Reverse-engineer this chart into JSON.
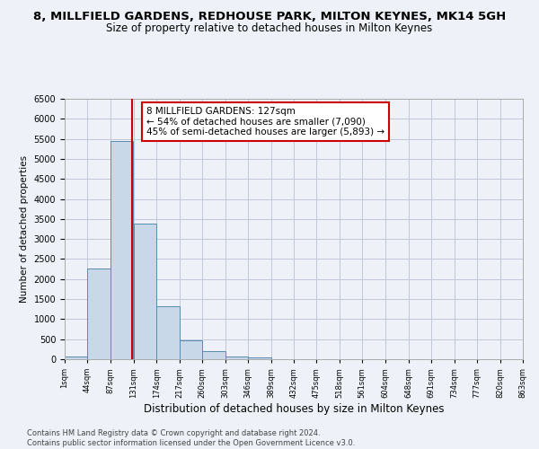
{
  "title": "8, MILLFIELD GARDENS, REDHOUSE PARK, MILTON KEYNES, MK14 5GH",
  "subtitle": "Size of property relative to detached houses in Milton Keynes",
  "xlabel": "Distribution of detached houses by size in Milton Keynes",
  "ylabel": "Number of detached properties",
  "bar_left_edges": [
    1,
    44,
    87,
    131,
    174,
    217,
    260,
    303,
    346,
    389,
    432,
    475,
    518,
    561,
    604,
    648,
    691,
    734,
    777,
    820
  ],
  "bar_heights": [
    75,
    2275,
    5450,
    3375,
    1325,
    475,
    200,
    75,
    50,
    0,
    0,
    0,
    0,
    0,
    0,
    0,
    0,
    0,
    0,
    0
  ],
  "bin_width": 43,
  "bar_color": "#c8d8e8",
  "bar_edge_color": "#5a8ab0",
  "vline_x": 127,
  "vline_color": "#cc0000",
  "annotation_text": "8 MILLFIELD GARDENS: 127sqm\n← 54% of detached houses are smaller (7,090)\n45% of semi-detached houses are larger (5,893) →",
  "annotation_box_color": "#ffffff",
  "annotation_box_edge_color": "#cc0000",
  "xlim": [
    1,
    863
  ],
  "ylim": [
    0,
    6500
  ],
  "yticks": [
    0,
    500,
    1000,
    1500,
    2000,
    2500,
    3000,
    3500,
    4000,
    4500,
    5000,
    5500,
    6000,
    6500
  ],
  "xtick_labels": [
    "1sqm",
    "44sqm",
    "87sqm",
    "131sqm",
    "174sqm",
    "217sqm",
    "260sqm",
    "303sqm",
    "346sqm",
    "389sqm",
    "432sqm",
    "475sqm",
    "518sqm",
    "561sqm",
    "604sqm",
    "648sqm",
    "691sqm",
    "734sqm",
    "777sqm",
    "820sqm",
    "863sqm"
  ],
  "xtick_positions": [
    1,
    44,
    87,
    131,
    174,
    217,
    260,
    303,
    346,
    389,
    432,
    475,
    518,
    561,
    604,
    648,
    691,
    734,
    777,
    820,
    863
  ],
  "grid_color": "#c0c8d8",
  "background_color": "#eef2f8",
  "footer_text": "Contains HM Land Registry data © Crown copyright and database right 2024.\nContains public sector information licensed under the Open Government Licence v3.0.",
  "title_fontsize": 9.5,
  "subtitle_fontsize": 8.5,
  "xlabel_fontsize": 8.5,
  "ylabel_fontsize": 7.5,
  "annotation_fontsize": 7.5,
  "footer_fontsize": 6.0
}
